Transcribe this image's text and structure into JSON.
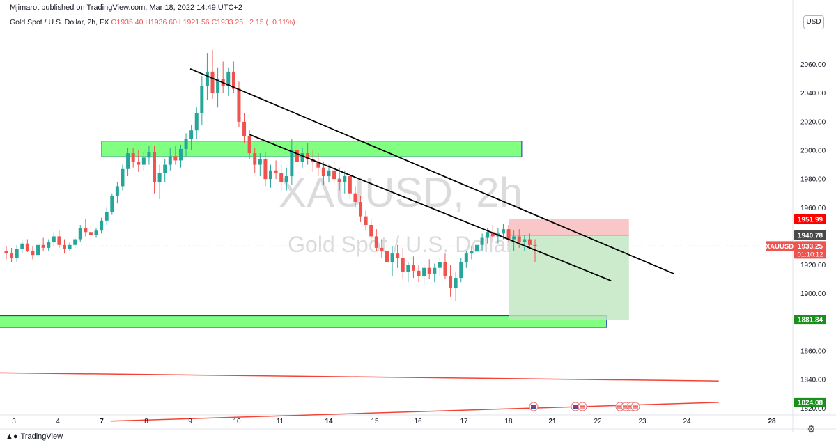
{
  "header": {
    "publisher": "Mjimarot published on TradingView.com, Mar 18, 2022 14:49 UTC+2",
    "symbol_title": "Gold Spot / U.S. Dollar, 2h, FX",
    "open": "O1935.40",
    "high": "H1936.60",
    "low": "L1921.56",
    "close": "C1933.25",
    "change": "−2.15 (−0.11%)",
    "currency_button": "USD"
  },
  "watermark": {
    "symbol": "XAUUSD, 2h",
    "name": "Gold Spot / U.S. Dollar"
  },
  "footer": {
    "brand": "TradingView"
  },
  "colors": {
    "up": "#26a69a",
    "down": "#ef5350",
    "zone": "#80ff80",
    "zone_border": "#1e1ed8",
    "stop": "#f44336",
    "target": "#1b8f1b"
  },
  "chart_data": {
    "type": "candlestick",
    "symbol": "XAUUSD",
    "timeframe": "2h",
    "ylim": [
      1812,
      2088
    ],
    "y_ticks": [
      "2060.00",
      "2040.00",
      "2020.00",
      "2000.00",
      "1980.00",
      "1960.00",
      "1920.00",
      "1900.00",
      "1860.00",
      "1840.00",
      "1820.00"
    ],
    "y_tick_values": [
      2060,
      2040,
      2020,
      2000,
      1980,
      1960,
      1920,
      1900,
      1860,
      1840,
      1820
    ],
    "x_ticks": [
      "3",
      "4",
      "7",
      "8",
      "9",
      "10",
      "11",
      "14",
      "15",
      "16",
      "17",
      "18",
      "21",
      "22",
      "23",
      "24",
      "28"
    ],
    "x_tick_bold": [
      "7",
      "14",
      "21",
      "28"
    ],
    "price_labels": [
      {
        "text": "1951.99",
        "value": 1951.99,
        "color": "#ff0000"
      },
      {
        "text": "1940.78",
        "value": 1940.78,
        "color": "#4a4a4a"
      },
      {
        "text": "1881.84",
        "value": 1881.84,
        "color": "#1b8f1b"
      },
      {
        "text": "1824.08",
        "value": 1824.08,
        "color": "#1b8f1b"
      }
    ],
    "last_price": {
      "symbol": "XAUUSD",
      "price": "1933.25",
      "countdown": "01:10:12",
      "value": 1933.25
    },
    "zones": [
      {
        "x_from": 7,
        "x_to": 18.9,
        "low": 1995.5,
        "high": 2006.5
      },
      {
        "x_from": 2,
        "x_to": 22.2,
        "low": 1876.5,
        "high": 1884.5
      }
    ],
    "position": {
      "x_from": 18,
      "x_to": 22.7,
      "entry": 1940.78,
      "stop": 1951.99,
      "target": 1881.84
    },
    "trendlines": [
      {
        "color": "#000000",
        "x1": 9,
        "y1": 2057,
        "x2": 23.7,
        "y2": 1914
      },
      {
        "color": "#000000",
        "x1": 10.3,
        "y1": 2011,
        "x2": 22.3,
        "y2": 1909
      },
      {
        "color": "#f44336",
        "x1": 2,
        "y1": 1845,
        "x2": 25.5,
        "y2": 1839
      },
      {
        "color": "#f44336",
        "x1": 7.2,
        "y1": 1811,
        "x2": 25.5,
        "y2": 1824.08
      }
    ],
    "candles": [
      [
        1930,
        1933,
        1924,
        1928
      ],
      [
        1928,
        1932,
        1922,
        1925
      ],
      [
        1925,
        1934,
        1922,
        1931
      ],
      [
        1931,
        1937,
        1928,
        1935
      ],
      [
        1935,
        1938,
        1929,
        1930
      ],
      [
        1930,
        1933,
        1924,
        1927
      ],
      [
        1927,
        1936,
        1925,
        1934
      ],
      [
        1934,
        1939,
        1930,
        1932
      ],
      [
        1932,
        1938,
        1930,
        1936
      ],
      [
        1936,
        1943,
        1933,
        1940
      ],
      [
        1940,
        1944,
        1932,
        1934
      ],
      [
        1934,
        1938,
        1928,
        1931
      ],
      [
        1931,
        1936,
        1930,
        1934
      ],
      [
        1934,
        1940,
        1932,
        1938
      ],
      [
        1938,
        1948,
        1936,
        1946
      ],
      [
        1946,
        1952,
        1940,
        1943
      ],
      [
        1943,
        1948,
        1938,
        1941
      ],
      [
        1941,
        1946,
        1939,
        1944
      ],
      [
        1944,
        1953,
        1942,
        1951
      ],
      [
        1951,
        1960,
        1948,
        1957
      ],
      [
        1957,
        1970,
        1955,
        1968
      ],
      [
        1968,
        1978,
        1963,
        1975
      ],
      [
        1975,
        1990,
        1972,
        1987
      ],
      [
        1987,
        2002,
        1982,
        1998
      ],
      [
        1998,
        2002,
        1988,
        1992
      ],
      [
        1992,
        2000,
        1985,
        1990
      ],
      [
        1990,
        1999,
        1986,
        1995
      ],
      [
        1995,
        2003,
        1990,
        1999
      ],
      [
        1999,
        2003,
        1970,
        1978
      ],
      [
        1978,
        1990,
        1966,
        1984
      ],
      [
        1984,
        1994,
        1978,
        1990
      ],
      [
        1990,
        2002,
        1986,
        1996
      ],
      [
        1996,
        2003,
        1990,
        1993
      ],
      [
        1993,
        2004,
        1988,
        2001
      ],
      [
        2001,
        2012,
        1996,
        2008
      ],
      [
        2008,
        2018,
        2000,
        2014
      ],
      [
        2014,
        2030,
        2008,
        2026
      ],
      [
        2026,
        2052,
        2018,
        2045
      ],
      [
        2045,
        2068,
        2035,
        2055
      ],
      [
        2055,
        2070,
        2036,
        2040
      ],
      [
        2040,
        2058,
        2030,
        2050
      ],
      [
        2050,
        2062,
        2040,
        2045
      ],
      [
        2045,
        2058,
        2038,
        2055
      ],
      [
        2055,
        2062,
        2040,
        2043
      ],
      [
        2043,
        2048,
        2016,
        2020
      ],
      [
        2020,
        2026,
        2005,
        2010
      ],
      [
        2010,
        2014,
        1994,
        1998
      ],
      [
        1998,
        2002,
        1984,
        1990
      ],
      [
        1990,
        1998,
        1982,
        1994
      ],
      [
        1994,
        1999,
        1975,
        1980
      ],
      [
        1980,
        1990,
        1974,
        1986
      ],
      [
        1986,
        1993,
        1980,
        1984
      ],
      [
        1984,
        1990,
        1972,
        1978
      ],
      [
        1978,
        1988,
        1972,
        1982
      ],
      [
        1982,
        2008,
        1976,
        2000
      ],
      [
        2000,
        2006,
        1988,
        1992
      ],
      [
        1992,
        2002,
        1988,
        1998
      ],
      [
        1998,
        2005,
        1990,
        1994
      ],
      [
        1994,
        2000,
        1985,
        1992
      ],
      [
        1992,
        1998,
        1982,
        1988
      ],
      [
        1988,
        1992,
        1976,
        1982
      ],
      [
        1982,
        1990,
        1978,
        1986
      ],
      [
        1986,
        1992,
        1976,
        1980
      ],
      [
        1980,
        1988,
        1972,
        1978
      ],
      [
        1978,
        1986,
        1970,
        1982
      ],
      [
        1982,
        1985,
        1966,
        1970
      ],
      [
        1970,
        1975,
        1960,
        1964
      ],
      [
        1964,
        1968,
        1950,
        1954
      ],
      [
        1954,
        1958,
        1944,
        1948
      ],
      [
        1948,
        1952,
        1935,
        1940
      ],
      [
        1940,
        1945,
        1930,
        1932
      ],
      [
        1932,
        1938,
        1925,
        1930
      ],
      [
        1930,
        1938,
        1920,
        1922
      ],
      [
        1922,
        1933,
        1912,
        1928
      ],
      [
        1928,
        1934,
        1918,
        1925
      ],
      [
        1925,
        1932,
        1910,
        1915
      ],
      [
        1915,
        1922,
        1908,
        1920
      ],
      [
        1920,
        1926,
        1911,
        1916
      ],
      [
        1916,
        1920,
        1908,
        1912
      ],
      [
        1912,
        1920,
        1906,
        1918
      ],
      [
        1918,
        1924,
        1910,
        1914
      ],
      [
        1914,
        1921,
        1908,
        1918
      ],
      [
        1918,
        1925,
        1912,
        1922
      ],
      [
        1922,
        1928,
        1910,
        1912
      ],
      [
        1912,
        1920,
        1898,
        1904
      ],
      [
        1904,
        1915,
        1895,
        1911
      ],
      [
        1911,
        1925,
        1908,
        1922
      ],
      [
        1922,
        1930,
        1918,
        1928
      ],
      [
        1928,
        1933,
        1924,
        1930
      ],
      [
        1930,
        1936,
        1928,
        1934
      ],
      [
        1934,
        1942,
        1930,
        1939
      ],
      [
        1939,
        1946,
        1935,
        1943
      ],
      [
        1943,
        1948,
        1936,
        1940
      ],
      [
        1940,
        1946,
        1935,
        1942
      ],
      [
        1942,
        1949,
        1938,
        1945
      ],
      [
        1945,
        1948,
        1936,
        1938
      ],
      [
        1938,
        1944,
        1930,
        1940
      ],
      [
        1940,
        1945,
        1932,
        1936
      ],
      [
        1936,
        1941,
        1930,
        1938
      ],
      [
        1938,
        1942,
        1931,
        1934
      ],
      [
        1934,
        1938,
        1922,
        1933
      ]
    ]
  }
}
